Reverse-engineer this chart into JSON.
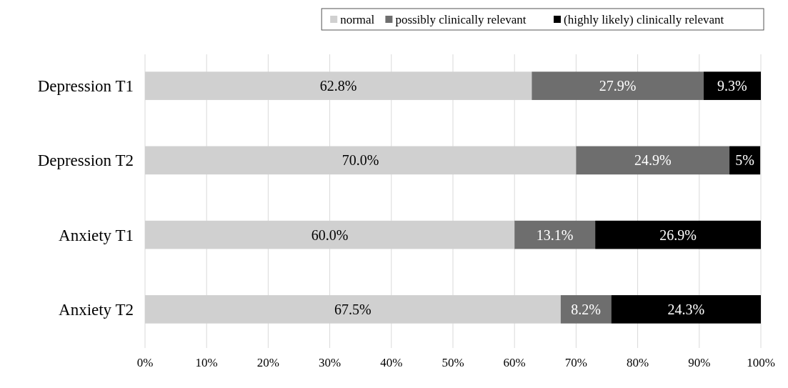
{
  "chart_data": {
    "type": "bar",
    "orientation": "horizontal",
    "stacked": true,
    "categories": [
      "Depression T1",
      "Depression T2",
      "Anxiety T1",
      "Anxiety T2"
    ],
    "series": [
      {
        "name": "normal",
        "color": "#d0d0d0",
        "values": [
          62.8,
          70.0,
          60.0,
          67.5
        ],
        "value_labels": [
          "62.8%",
          "70.0%",
          "60.0%",
          "67.5%"
        ]
      },
      {
        "name": "possibly clinically relevant",
        "color": "#6e6e6e",
        "values": [
          27.9,
          24.9,
          13.1,
          8.2
        ],
        "value_labels": [
          "27.9%",
          "24.9%",
          "13.1%",
          "8.2%"
        ]
      },
      {
        "name": "(highly likely) clinically relevant",
        "color": "#000000",
        "values": [
          9.3,
          5.0,
          26.9,
          24.3
        ],
        "value_labels": [
          "9.3%",
          "5%",
          "26.9%",
          "24.3%"
        ]
      }
    ],
    "xlim": [
      0,
      100
    ],
    "xticks": [
      {
        "value": 0,
        "label": "0%"
      },
      {
        "value": 10,
        "label": "10%"
      },
      {
        "value": 20,
        "label": "20%"
      },
      {
        "value": 30,
        "label": "30%"
      },
      {
        "value": 40,
        "label": "40%"
      },
      {
        "value": 50,
        "label": "50%"
      },
      {
        "value": 60,
        "label": "60%"
      },
      {
        "value": 70,
        "label": "70%"
      },
      {
        "value": 80,
        "label": "80%"
      },
      {
        "value": 90,
        "label": "90%"
      },
      {
        "value": 100,
        "label": "100%"
      }
    ],
    "grid": "x",
    "legend": "top right"
  }
}
